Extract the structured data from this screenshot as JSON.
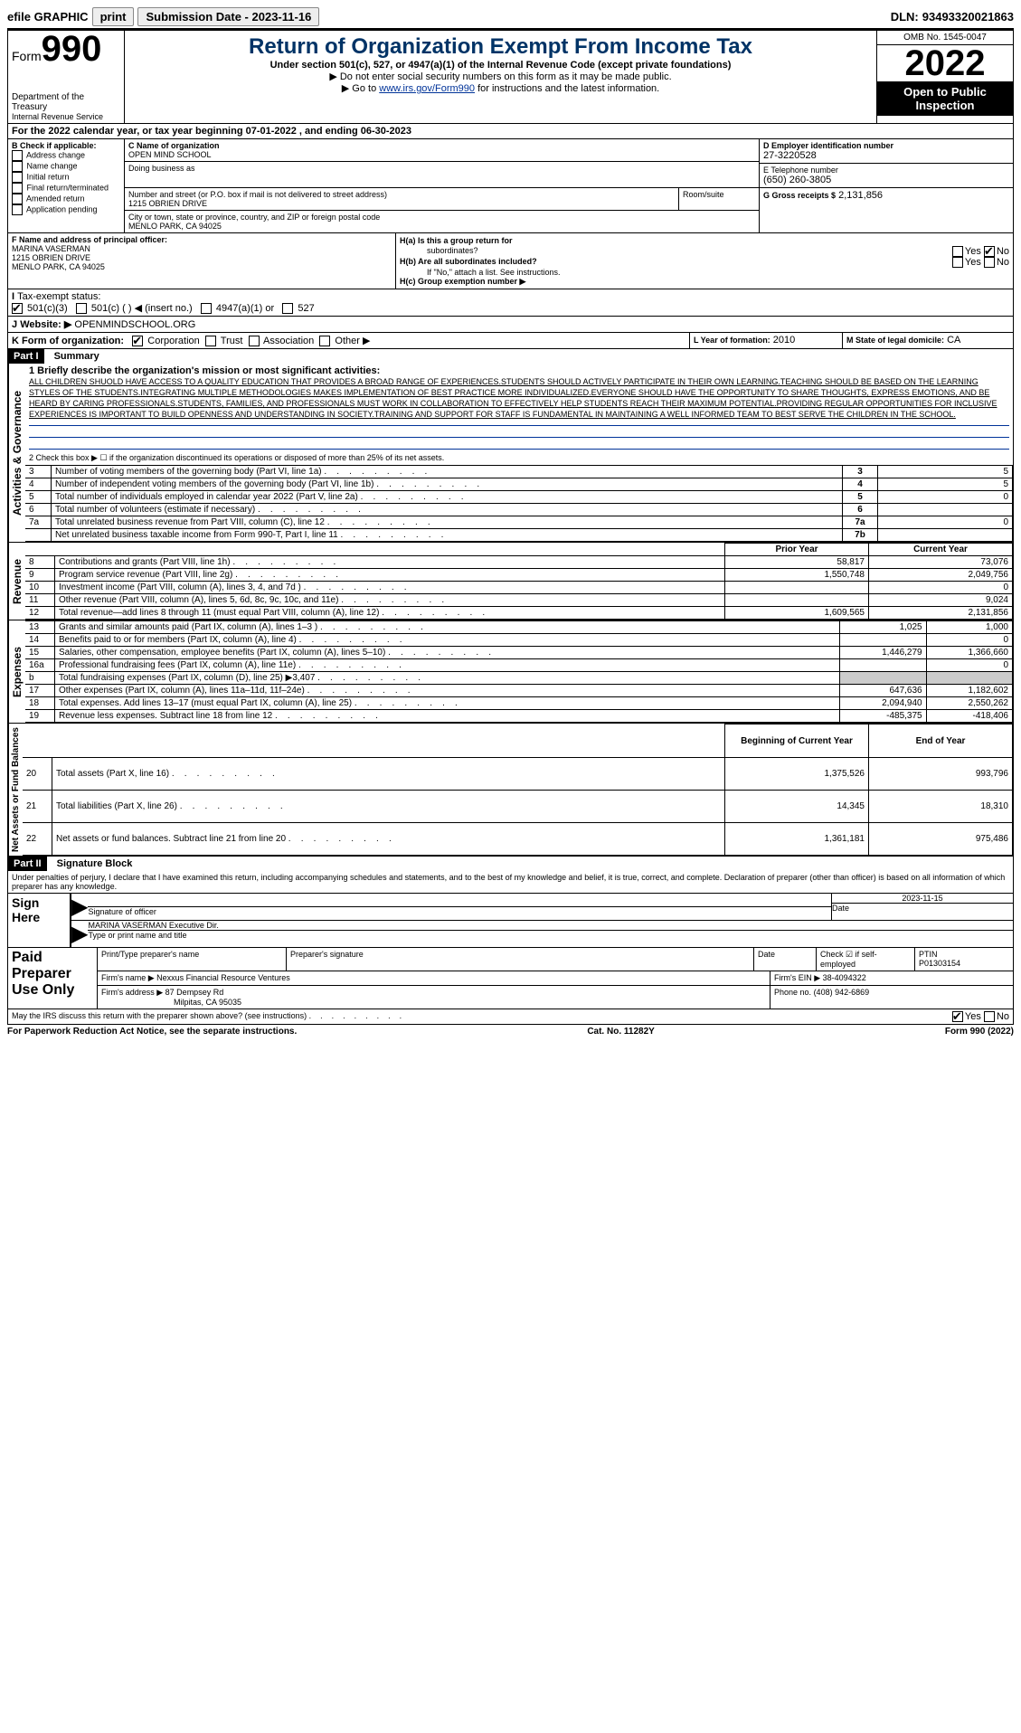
{
  "topbar": {
    "efile": "efile GRAPHIC",
    "print": "print",
    "sub_label": "Submission Date -",
    "sub_date": "2023-11-16",
    "dln_label": "DLN:",
    "dln": "93493320021863"
  },
  "header": {
    "form_prefix": "Form",
    "form_num": "990",
    "dept": "Department of the Treasury",
    "irs": "Internal Revenue Service",
    "title": "Return of Organization Exempt From Income Tax",
    "sub1": "Under section 501(c), 527, or 4947(a)(1) of the Internal Revenue Code (except private foundations)",
    "sub2": "▶ Do not enter social security numbers on this form as it may be made public.",
    "sub3_pre": "▶ Go to ",
    "sub3_link": "www.irs.gov/Form990",
    "sub3_post": " for instructions and the latest information.",
    "omb": "OMB No. 1545-0047",
    "year": "2022",
    "open1": "Open to Public",
    "open2": "Inspection"
  },
  "periodA": "For the 2022 calendar year, or tax year beginning 07-01-2022   , and ending 06-30-2023",
  "sectionB": {
    "label": "B Check if applicable:",
    "items": [
      "Address change",
      "Name change",
      "Initial return",
      "Final return/terminated",
      "Amended return",
      "Application pending"
    ]
  },
  "sectionC": {
    "name_label": "C Name of organization",
    "name": "OPEN MIND SCHOOL",
    "dba_label": "Doing business as",
    "addr_label": "Number and street (or P.O. box if mail is not delivered to street address)",
    "room_label": "Room/suite",
    "addr": "1215 OBRIEN DRIVE",
    "city_label": "City or town, state or province, country, and ZIP or foreign postal code",
    "city": "MENLO PARK, CA  94025"
  },
  "sectionD": {
    "label": "D Employer identification number",
    "val": "27-3220528"
  },
  "sectionE": {
    "label": "E Telephone number",
    "val": "(650) 260-3805"
  },
  "sectionG": {
    "label": "G Gross receipts $",
    "val": "2,131,856"
  },
  "sectionF": {
    "label": "F  Name and address of principal officer:",
    "name": "MARINA VASERMAN",
    "addr1": "1215 OBRIEN DRIVE",
    "addr2": "MENLO PARK, CA  94025"
  },
  "sectionH": {
    "a": "H(a)  Is this a group return for",
    "a2": "subordinates?",
    "b": "H(b)  Are all subordinates included?",
    "b2": "If \"No,\" attach a list. See instructions.",
    "c": "H(c)  Group exemption number ▶"
  },
  "sectionI": {
    "label": "Tax-exempt status:",
    "opts": [
      "501(c)(3)",
      "501(c) (   ) ◀ (insert no.)",
      "4947(a)(1) or",
      "527"
    ]
  },
  "sectionJ": {
    "label": "Website: ▶",
    "val": "OPENMINDSCHOOL.ORG"
  },
  "sectionK": {
    "label": "K Form of organization:",
    "opts": [
      "Corporation",
      "Trust",
      "Association",
      "Other ▶"
    ]
  },
  "sectionL": {
    "label": "L Year of formation:",
    "val": "2010"
  },
  "sectionM": {
    "label": "M State of legal domicile:",
    "val": "CA"
  },
  "part1": {
    "header": "Part I",
    "title": "Summary",
    "l1_label": "1  Briefly describe the organization's mission or most significant activities:",
    "l1_text": "ALL CHILDREN SHUOLD HAVE ACCESS TO A QUALITY EDUCATION THAT PROVIDES A BROAD RANGE OF EXPERIENCES.STUDENTS SHOULD ACTIVELY PARTICIPATE IN THEIR OWN LEARNING.TEACHING SHOULD BE BASED ON THE LEARNING STYLES OF THE STUDENTS.INTEGRATING MULTIPLE METHODOLOGIES MAKES IMPLEMENTATION OF BEST PRACTICE MORE INDIVIDUALIZED.EVERYONE SHOULD HAVE THE OPPORTUNITY TO SHARE THOUGHTS, EXPRESS EMOTIONS, AND BE HEARD BY CARING PROFESSIONALS.STUDENTS, FAMILIES, AND PROFESSIONALS MUST WORK IN COLLABORATION TO EFFECTIVELY HELP STUDENTS REACH THEIR MAXIMUM POTENTIAL.PROVIDING REGULAR OPPORTUNITIES FOR INCLUSIVE EXPERIENCES IS IMPORTANT TO BUILD OPENNESS AND UNDERSTANDING IN SOCIETY.TRAINING AND SUPPORT FOR STAFF IS FUNDAMENTAL IN MAINTAINING A WELL INFORMED TEAM TO BEST SERVE THE CHILDREN IN THE SCHOOL.",
    "l2": "2  Check this box ▶ ☐ if the organization discontinued its operations or disposed of more than 25% of its net assets.",
    "vert_ag": "Activities & Governance",
    "vert_rev": "Revenue",
    "vert_exp": "Expenses",
    "vert_na": "Net Assets or Fund Balances",
    "gov_rows": [
      {
        "n": "3",
        "label": "Number of voting members of the governing body (Part VI, line 1a)",
        "box": "3",
        "val": "5"
      },
      {
        "n": "4",
        "label": "Number of independent voting members of the governing body (Part VI, line 1b)",
        "box": "4",
        "val": "5"
      },
      {
        "n": "5",
        "label": "Total number of individuals employed in calendar year 2022 (Part V, line 2a)",
        "box": "5",
        "val": "0"
      },
      {
        "n": "6",
        "label": "Total number of volunteers (estimate if necessary)",
        "box": "6",
        "val": ""
      },
      {
        "n": "7a",
        "label": "Total unrelated business revenue from Part VIII, column (C), line 12",
        "box": "7a",
        "val": "0"
      },
      {
        "n": "",
        "label": "Net unrelated business taxable income from Form 990-T, Part I, line 11",
        "box": "7b",
        "val": ""
      }
    ],
    "py_header": "Prior Year",
    "cy_header": "Current Year",
    "rev_rows": [
      {
        "n": "8",
        "label": "Contributions and grants (Part VIII, line 1h)",
        "py": "58,817",
        "cy": "73,076"
      },
      {
        "n": "9",
        "label": "Program service revenue (Part VIII, line 2g)",
        "py": "1,550,748",
        "cy": "2,049,756"
      },
      {
        "n": "10",
        "label": "Investment income (Part VIII, column (A), lines 3, 4, and 7d )",
        "py": "",
        "cy": "0"
      },
      {
        "n": "11",
        "label": "Other revenue (Part VIII, column (A), lines 5, 6d, 8c, 9c, 10c, and 11e)",
        "py": "",
        "cy": "9,024"
      },
      {
        "n": "12",
        "label": "Total revenue—add lines 8 through 11 (must equal Part VIII, column (A), line 12)",
        "py": "1,609,565",
        "cy": "2,131,856"
      }
    ],
    "exp_rows": [
      {
        "n": "13",
        "label": "Grants and similar amounts paid (Part IX, column (A), lines 1–3 )",
        "py": "1,025",
        "cy": "1,000"
      },
      {
        "n": "14",
        "label": "Benefits paid to or for members (Part IX, column (A), line 4)",
        "py": "",
        "cy": "0"
      },
      {
        "n": "15",
        "label": "Salaries, other compensation, employee benefits (Part IX, column (A), lines 5–10)",
        "py": "1,446,279",
        "cy": "1,366,660"
      },
      {
        "n": "16a",
        "label": "Professional fundraising fees (Part IX, column (A), line 11e)",
        "py": "",
        "cy": "0"
      },
      {
        "n": "b",
        "label": "Total fundraising expenses (Part IX, column (D), line 25) ▶3,407",
        "py": "GRAY",
        "cy": "GRAY"
      },
      {
        "n": "17",
        "label": "Other expenses (Part IX, column (A), lines 11a–11d, 11f–24e)",
        "py": "647,636",
        "cy": "1,182,602"
      },
      {
        "n": "18",
        "label": "Total expenses. Add lines 13–17 (must equal Part IX, column (A), line 25)",
        "py": "2,094,940",
        "cy": "2,550,262"
      },
      {
        "n": "19",
        "label": "Revenue less expenses. Subtract line 18 from line 12",
        "py": "-485,375",
        "cy": "-418,406"
      }
    ],
    "na_header1": "Beginning of Current Year",
    "na_header2": "End of Year",
    "na_rows": [
      {
        "n": "20",
        "label": "Total assets (Part X, line 16)",
        "py": "1,375,526",
        "cy": "993,796"
      },
      {
        "n": "21",
        "label": "Total liabilities (Part X, line 26)",
        "py": "14,345",
        "cy": "18,310"
      },
      {
        "n": "22",
        "label": "Net assets or fund balances. Subtract line 21 from line 20",
        "py": "1,361,181",
        "cy": "975,486"
      }
    ]
  },
  "part2": {
    "header": "Part II",
    "title": "Signature Block",
    "decl": "Under penalties of perjury, I declare that I have examined this return, including accompanying schedules and statements, and to the best of my knowledge and belief, it is true, correct, and complete. Declaration of preparer (other than officer) is based on all information of which preparer has any knowledge.",
    "sign_here": "Sign Here",
    "sig_officer": "Signature of officer",
    "sig_date": "Date",
    "sig_date_val": "2023-11-15",
    "officer_name": "MARINA VASERMAN  Executive Dir.",
    "officer_type": "Type or print name and title",
    "paid": "Paid Preparer Use Only",
    "prep_name_label": "Print/Type preparer's name",
    "prep_sig_label": "Preparer's signature",
    "prep_date_label": "Date",
    "prep_self_label": "Check ☑ if self-employed",
    "ptin_label": "PTIN",
    "ptin": "P01303154",
    "firm_name_label": "Firm's name    ▶",
    "firm_name": "Nexxus Financial Resource Ventures",
    "firm_ein_label": "Firm's EIN ▶",
    "firm_ein": "38-4094322",
    "firm_addr_label": "Firm's address ▶",
    "firm_addr1": "87 Dempsey Rd",
    "firm_addr2": "Milpitas, CA  95035",
    "phone_label": "Phone no.",
    "phone": "(408) 942-6869",
    "discuss": "May the IRS discuss this return with the preparer shown above? (see instructions)"
  },
  "footer": {
    "left": "For Paperwork Reduction Act Notice, see the separate instructions.",
    "mid": "Cat. No. 11282Y",
    "right": "Form 990 (2022)"
  },
  "yesno": {
    "yes": "Yes",
    "no": "No"
  }
}
